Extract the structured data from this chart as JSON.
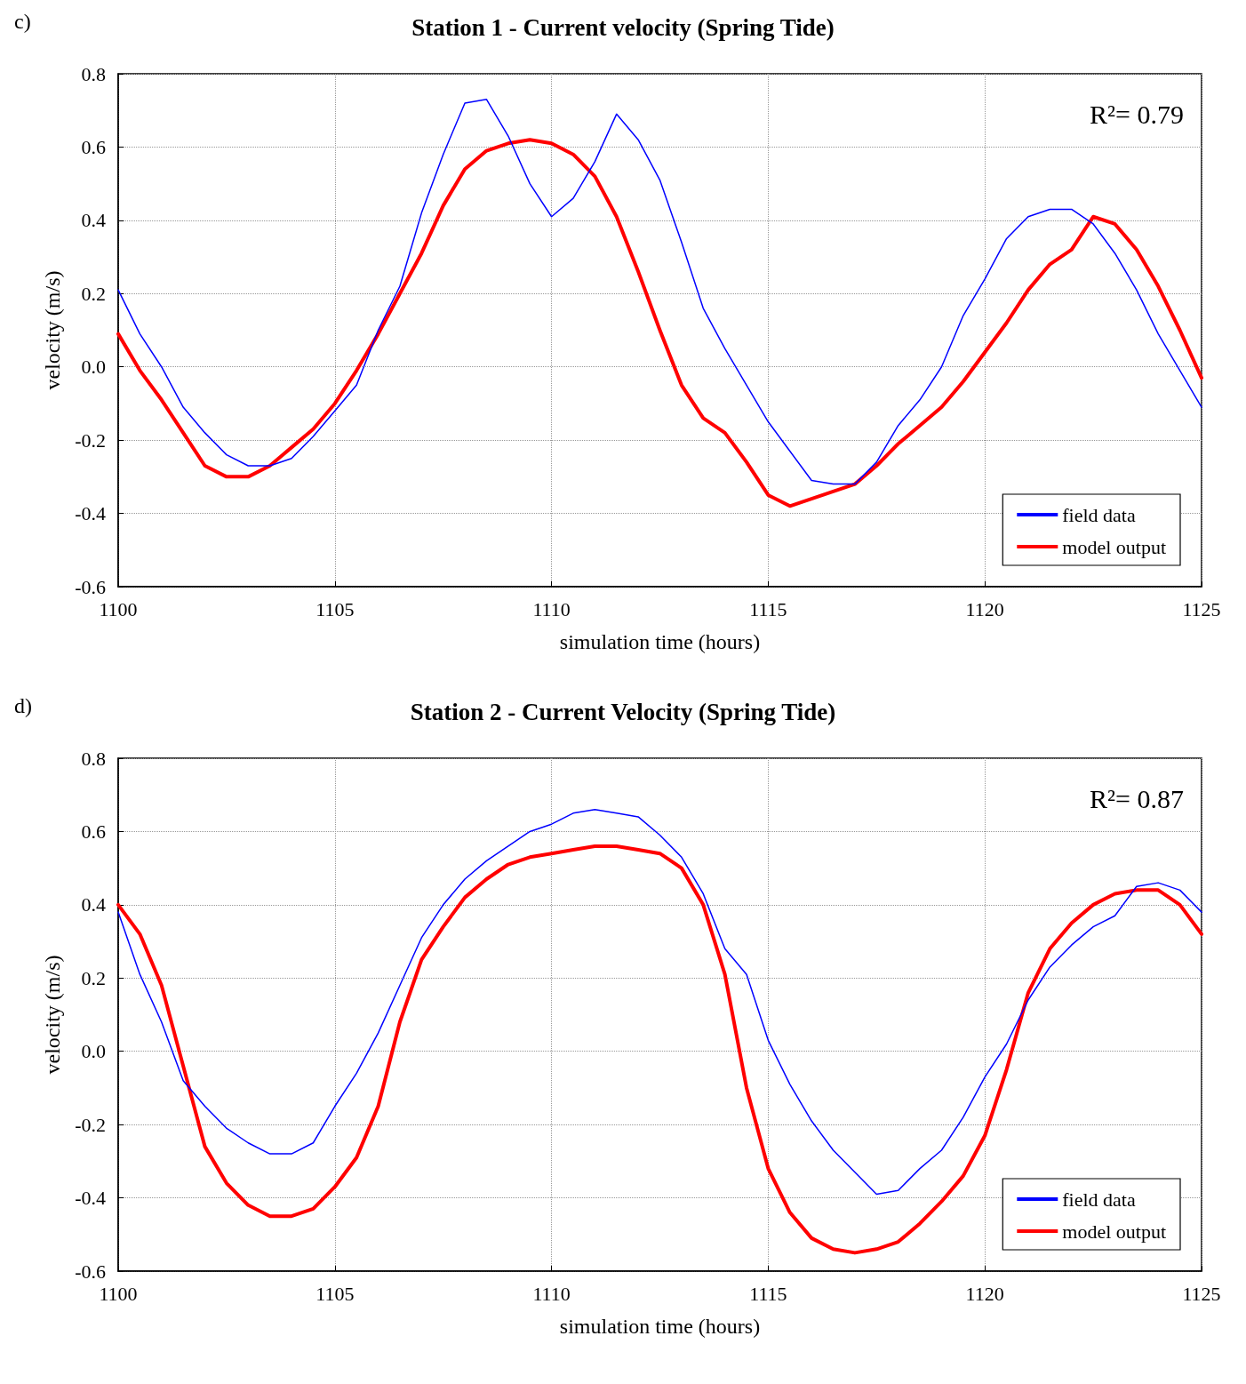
{
  "chart_data": [
    {
      "type": "line",
      "title": "Station 1 - Current velocity (Spring Tide)",
      "xlabel": "simulation time (hours)",
      "ylabel": "velocity (m/s)",
      "annotations": [
        "c)",
        "R²= 0.79"
      ],
      "xlim": [
        1100,
        1125
      ],
      "xticks": [
        1100,
        1105,
        1110,
        1115,
        1120,
        1125
      ],
      "ylim": [
        -0.6,
        0.8
      ],
      "yticks": [
        -0.6,
        -0.4,
        -0.2,
        {
          "value": 0,
          "label": "0.0"
        },
        0.2,
        0.4,
        0.6,
        0.8
      ],
      "grid": true,
      "legend": "bottom right",
      "marker": "none",
      "line_style": "solid",
      "x": [
        1100,
        1100.5,
        1101,
        1101.5,
        1102,
        1102.5,
        1103,
        1103.5,
        1104,
        1104.5,
        1105,
        1105.5,
        1106,
        1106.5,
        1107,
        1107.5,
        1108,
        1108.5,
        1109,
        1109.5,
        1110,
        1110.5,
        1111,
        1111.5,
        1112,
        1112.5,
        1113,
        1113.5,
        1114,
        1114.5,
        1115,
        1115.5,
        1116,
        1116.5,
        1117,
        1117.5,
        1118,
        1118.5,
        1119,
        1119.5,
        1120,
        1120.5,
        1121,
        1121.5,
        1122,
        1122.5,
        1123,
        1123.5,
        1124,
        1124.5,
        1125
      ],
      "series": [
        {
          "name": "field data",
          "color": "#0000ff",
          "values": [
            0.21,
            0.09,
            0.0,
            -0.11,
            -0.18,
            -0.24,
            -0.27,
            -0.27,
            -0.25,
            -0.19,
            -0.12,
            -0.05,
            0.1,
            0.22,
            0.42,
            0.58,
            0.72,
            0.73,
            0.63,
            0.5,
            0.41,
            0.46,
            0.56,
            0.69,
            0.62,
            0.51,
            0.34,
            0.16,
            0.05,
            -0.05,
            -0.15,
            -0.23,
            -0.31,
            -0.32,
            -0.32,
            -0.26,
            -0.16,
            -0.09,
            0.0,
            0.14,
            0.24,
            0.35,
            0.41,
            0.43,
            0.43,
            0.39,
            0.31,
            0.21,
            0.09,
            -0.01,
            -0.11
          ]
        },
        {
          "name": "model output",
          "color": "#ff0000",
          "values": [
            0.09,
            -0.01,
            -0.09,
            -0.18,
            -0.27,
            -0.3,
            -0.3,
            -0.27,
            -0.22,
            -0.17,
            -0.1,
            -0.01,
            0.09,
            0.2,
            0.31,
            0.44,
            0.54,
            0.59,
            0.61,
            0.62,
            0.61,
            0.58,
            0.52,
            0.41,
            0.26,
            0.1,
            -0.05,
            -0.14,
            -0.18,
            -0.26,
            -0.35,
            -0.38,
            -0.36,
            -0.34,
            -0.32,
            -0.27,
            -0.21,
            -0.16,
            -0.11,
            -0.04,
            0.04,
            0.12,
            0.21,
            0.28,
            0.32,
            0.41,
            0.39,
            0.32,
            0.22,
            0.1,
            -0.03
          ]
        }
      ]
    },
    {
      "type": "line",
      "title": "Station 2 - Current Velocity (Spring Tide)",
      "xlabel": "simulation time (hours)",
      "ylabel": "velocity (m/s)",
      "annotations": [
        "d)",
        "R²= 0.87"
      ],
      "xlim": [
        1100,
        1125
      ],
      "xticks": [
        1100,
        1105,
        1110,
        1115,
        1120,
        1125
      ],
      "ylim": [
        -0.6,
        0.8
      ],
      "yticks": [
        -0.6,
        -0.4,
        -0.2,
        {
          "value": 0,
          "label": "0.0"
        },
        0.2,
        0.4,
        0.6,
        0.8
      ],
      "grid": true,
      "legend": "bottom right",
      "marker": "none",
      "line_style": "solid",
      "x": [
        1100,
        1100.5,
        1101,
        1101.5,
        1102,
        1102.5,
        1103,
        1103.5,
        1104,
        1104.5,
        1105,
        1105.5,
        1106,
        1106.5,
        1107,
        1107.5,
        1108,
        1108.5,
        1109,
        1109.5,
        1110,
        1110.5,
        1111,
        1111.5,
        1112,
        1112.5,
        1113,
        1113.5,
        1114,
        1114.5,
        1115,
        1115.5,
        1116,
        1116.5,
        1117,
        1117.5,
        1118,
        1118.5,
        1119,
        1119.5,
        1120,
        1120.5,
        1121,
        1121.5,
        1122,
        1122.5,
        1123,
        1123.5,
        1124,
        1124.5,
        1125
      ],
      "series": [
        {
          "name": "field data",
          "color": "#0000ff",
          "values": [
            0.38,
            0.21,
            0.08,
            -0.08,
            -0.15,
            -0.21,
            -0.25,
            -0.28,
            -0.28,
            -0.25,
            -0.15,
            -0.06,
            0.05,
            0.18,
            0.31,
            0.4,
            0.47,
            0.52,
            0.56,
            0.6,
            0.62,
            0.65,
            0.66,
            0.65,
            0.64,
            0.59,
            0.53,
            0.43,
            0.28,
            0.21,
            0.03,
            -0.09,
            -0.19,
            -0.27,
            -0.33,
            -0.39,
            -0.38,
            -0.32,
            -0.27,
            -0.18,
            -0.07,
            0.02,
            0.14,
            0.23,
            0.29,
            0.34,
            0.37,
            0.45,
            0.46,
            0.44,
            0.38
          ]
        },
        {
          "name": "model output",
          "color": "#ff0000",
          "values": [
            0.4,
            0.32,
            0.18,
            -0.04,
            -0.26,
            -0.36,
            -0.42,
            -0.45,
            -0.45,
            -0.43,
            -0.37,
            -0.29,
            -0.15,
            0.08,
            0.25,
            0.34,
            0.42,
            0.47,
            0.51,
            0.53,
            0.54,
            0.55,
            0.56,
            0.56,
            0.55,
            0.54,
            0.5,
            0.4,
            0.21,
            -0.1,
            -0.32,
            -0.44,
            -0.51,
            -0.54,
            -0.55,
            -0.54,
            -0.52,
            -0.47,
            -0.41,
            -0.34,
            -0.23,
            -0.05,
            0.16,
            0.28,
            0.35,
            0.4,
            0.43,
            0.44,
            0.44,
            0.4,
            0.32
          ]
        }
      ]
    }
  ]
}
